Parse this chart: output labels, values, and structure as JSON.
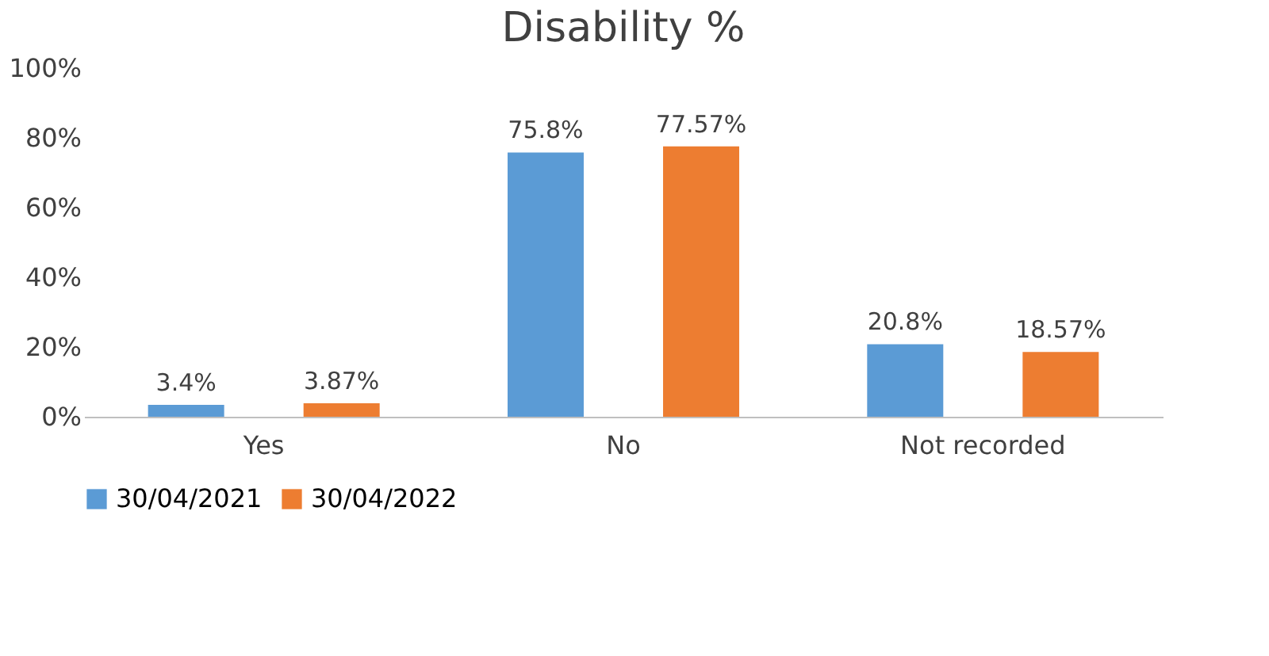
{
  "chart_data": {
    "type": "bar",
    "title": "Disability %",
    "categories": [
      "Yes",
      "No",
      "Not recorded"
    ],
    "series": [
      {
        "name": "30/04/2021",
        "color": "#5b9bd5",
        "values": [
          3.4,
          75.8,
          20.8
        ],
        "value_labels": [
          "3.4%",
          "75.8%",
          "20.8%"
        ]
      },
      {
        "name": "30/04/2022",
        "color": "#ed7d31",
        "values": [
          3.87,
          77.57,
          18.57
        ],
        "value_labels": [
          "3.87%",
          "77.57%",
          "18.57%"
        ]
      }
    ],
    "ylim": [
      0,
      100
    ],
    "yticks": [
      {
        "value": 0,
        "label": "0%"
      },
      {
        "value": 20,
        "label": "20%"
      },
      {
        "value": 40,
        "label": "40%"
      },
      {
        "value": 60,
        "label": "60%"
      },
      {
        "value": 80,
        "label": "80%"
      },
      {
        "value": 100,
        "label": "100%"
      }
    ],
    "grid": false,
    "legend": "bottom"
  }
}
